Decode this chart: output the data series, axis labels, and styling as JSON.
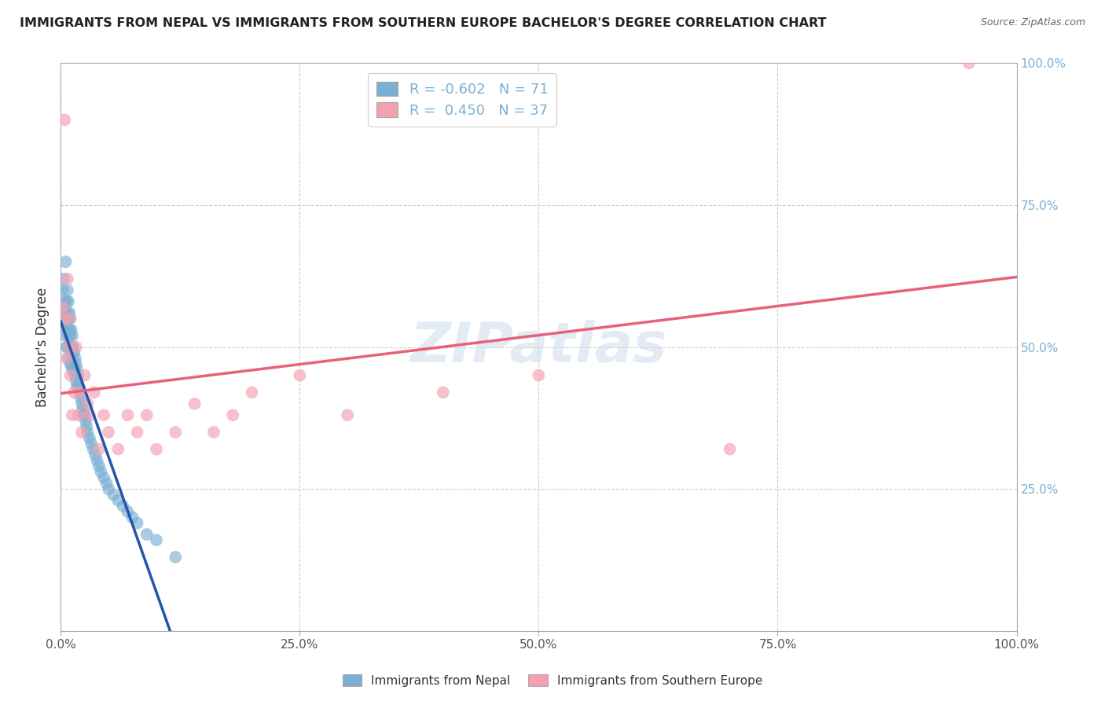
{
  "title": "IMMIGRANTS FROM NEPAL VS IMMIGRANTS FROM SOUTHERN EUROPE BACHELOR'S DEGREE CORRELATION CHART",
  "source": "Source: ZipAtlas.com",
  "ylabel": "Bachelor's Degree",
  "legend_labels": [
    "Immigrants from Nepal",
    "Immigrants from Southern Europe"
  ],
  "r_nepal": -0.602,
  "n_nepal": 71,
  "r_south_europe": 0.45,
  "n_south_europe": 37,
  "color_nepal": "#7BAFD4",
  "color_south_europe": "#F4A0B0",
  "line_color_nepal": "#2255AA",
  "line_color_south_europe": "#E8607A",
  "background_color": "#FFFFFF",
  "nepal_x": [
    0.002,
    0.003,
    0.004,
    0.004,
    0.005,
    0.005,
    0.005,
    0.006,
    0.006,
    0.006,
    0.007,
    0.007,
    0.007,
    0.007,
    0.008,
    0.008,
    0.008,
    0.008,
    0.009,
    0.009,
    0.009,
    0.01,
    0.01,
    0.01,
    0.01,
    0.011,
    0.011,
    0.011,
    0.012,
    0.012,
    0.012,
    0.013,
    0.013,
    0.014,
    0.014,
    0.015,
    0.015,
    0.016,
    0.016,
    0.017,
    0.017,
    0.018,
    0.019,
    0.02,
    0.021,
    0.022,
    0.023,
    0.024,
    0.025,
    0.026,
    0.027,
    0.028,
    0.03,
    0.032,
    0.034,
    0.036,
    0.038,
    0.04,
    0.042,
    0.045,
    0.048,
    0.05,
    0.055,
    0.06,
    0.065,
    0.07,
    0.075,
    0.08,
    0.09,
    0.1,
    0.12
  ],
  "nepal_y": [
    0.6,
    0.62,
    0.58,
    0.56,
    0.65,
    0.55,
    0.52,
    0.58,
    0.54,
    0.5,
    0.6,
    0.56,
    0.53,
    0.5,
    0.58,
    0.55,
    0.52,
    0.48,
    0.56,
    0.53,
    0.5,
    0.55,
    0.52,
    0.5,
    0.47,
    0.53,
    0.5,
    0.47,
    0.52,
    0.49,
    0.46,
    0.5,
    0.47,
    0.49,
    0.46,
    0.48,
    0.45,
    0.47,
    0.44,
    0.46,
    0.43,
    0.45,
    0.43,
    0.42,
    0.41,
    0.4,
    0.39,
    0.38,
    0.38,
    0.37,
    0.36,
    0.35,
    0.34,
    0.33,
    0.32,
    0.31,
    0.3,
    0.29,
    0.28,
    0.27,
    0.26,
    0.25,
    0.24,
    0.23,
    0.22,
    0.21,
    0.2,
    0.19,
    0.17,
    0.16,
    0.13
  ],
  "south_europe_x": [
    0.002,
    0.004,
    0.005,
    0.006,
    0.007,
    0.008,
    0.009,
    0.01,
    0.012,
    0.014,
    0.016,
    0.018,
    0.02,
    0.022,
    0.025,
    0.028,
    0.03,
    0.035,
    0.04,
    0.045,
    0.05,
    0.06,
    0.07,
    0.08,
    0.09,
    0.1,
    0.12,
    0.14,
    0.16,
    0.18,
    0.2,
    0.25,
    0.3,
    0.4,
    0.5,
    0.7,
    0.95
  ],
  "south_europe_y": [
    0.57,
    0.9,
    0.55,
    0.48,
    0.62,
    0.5,
    0.55,
    0.45,
    0.38,
    0.42,
    0.5,
    0.38,
    0.42,
    0.35,
    0.45,
    0.4,
    0.38,
    0.42,
    0.32,
    0.38,
    0.35,
    0.32,
    0.38,
    0.35,
    0.38,
    0.32,
    0.35,
    0.4,
    0.35,
    0.38,
    0.42,
    0.45,
    0.38,
    0.42,
    0.45,
    0.32,
    1.0
  ],
  "xlim": [
    0.0,
    1.0
  ],
  "ylim": [
    0.0,
    1.0
  ],
  "xticks": [
    0.0,
    0.25,
    0.5,
    0.75,
    1.0
  ],
  "yticks": [
    0.0,
    0.25,
    0.5,
    0.75,
    1.0
  ],
  "xticklabels": [
    "0.0%",
    "25.0%",
    "50.0%",
    "75.0%",
    "100.0%"
  ],
  "yticklabels": [
    "",
    "25.0%",
    "50.0%",
    "75.0%",
    "100.0%"
  ],
  "grid_color": "#BBBBBB",
  "title_fontsize": 11.5,
  "tick_fontsize": 11,
  "ylabel_fontsize": 12
}
